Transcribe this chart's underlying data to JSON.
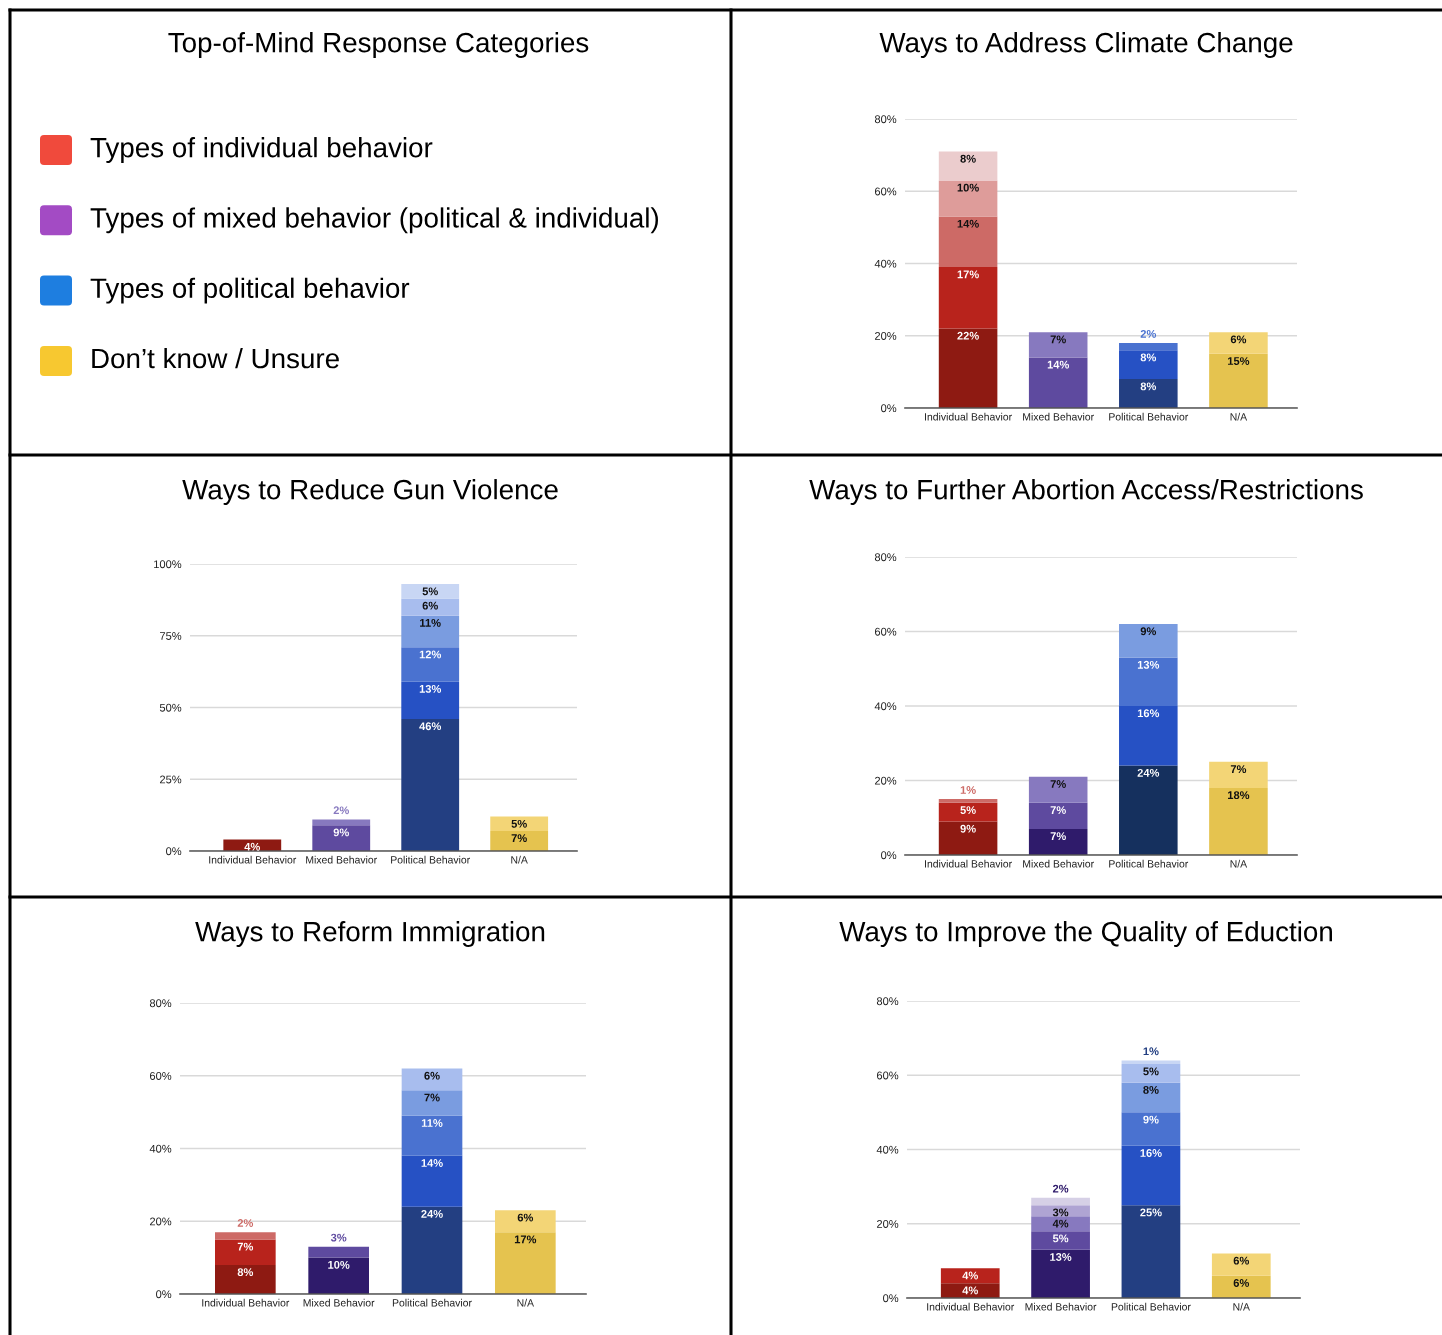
{
  "chart_data": [
    {
      "type": "other",
      "title": "Top-of-Mind Response Categories",
      "annotations": [
        "Types of individual behavior",
        "Types of mixed behavior (political & individual)",
        "Types of political behavior",
        "Don’t know / Unsure"
      ],
      "colors": [
        "#f04a3c",
        "#a34bc4",
        "#1e7ee0",
        "#f7c830"
      ]
    },
    {
      "type": "bar",
      "stacked": true,
      "title": "Ways to Address Climate Change",
      "grid": "y",
      "categories": [
        "Individual Behavior",
        "Mixed Behavior",
        "Political Behavior",
        "N/A"
      ],
      "ylim": [
        0,
        80
      ],
      "yticks": [
        {
          "value": 0,
          "label": "0%"
        },
        {
          "value": 20,
          "label": "20%"
        },
        {
          "value": 40,
          "label": "40%"
        },
        {
          "value": 60,
          "label": "60%"
        },
        {
          "value": 80,
          "label": "80%"
        }
      ],
      "series": [
        {
          "values": [
            22,
            14,
            8,
            15
          ],
          "colors": [
            "#8e1a12",
            "#5e4a9f",
            "#233f82",
            "#e5c34f"
          ],
          "value_labels": [
            "22%",
            "14%",
            "8%",
            "15%"
          ]
        },
        {
          "values": [
            17,
            7,
            8,
            6
          ],
          "colors": [
            "#b8231c",
            "#8779bf",
            "#2651c4",
            "#f3d576"
          ],
          "value_labels": [
            "17%",
            "7%",
            "8%",
            "6%"
          ]
        },
        {
          "values": [
            14,
            null,
            2,
            null
          ],
          "colors": [
            "#cd6a66",
            null,
            "#4a72d0",
            null
          ],
          "value_labels": [
            "14%",
            null,
            "2%",
            null
          ]
        },
        {
          "values": [
            10,
            null,
            null,
            null
          ],
          "colors": [
            "#de9c9a",
            null,
            null,
            null
          ],
          "value_labels": [
            "10%",
            null,
            null,
            null
          ]
        },
        {
          "values": [
            8,
            null,
            null,
            null
          ],
          "colors": [
            "#ebcccd",
            null,
            null,
            null
          ],
          "value_labels": [
            "8%",
            null,
            null,
            null
          ]
        }
      ]
    },
    {
      "type": "bar",
      "stacked": true,
      "title": "Ways to Reduce Gun Violence",
      "grid": "y",
      "categories": [
        "Individual Behavior",
        "Mixed Behavior",
        "Political Behavior",
        "N/A"
      ],
      "ylim": [
        0,
        100
      ],
      "yticks": [
        {
          "value": 0,
          "label": "0%"
        },
        {
          "value": 25,
          "label": "25%"
        },
        {
          "value": 50,
          "label": "50%"
        },
        {
          "value": 75,
          "label": "75%"
        },
        {
          "value": 100,
          "label": "100%"
        }
      ],
      "series": [
        {
          "values": [
            4,
            9,
            46,
            7
          ],
          "colors": [
            "#8e1a12",
            "#5e4a9f",
            "#233f82",
            "#e5c34f"
          ],
          "value_labels": [
            "4%",
            "9%",
            "46%",
            "7%"
          ]
        },
        {
          "values": [
            null,
            2,
            13,
            5
          ],
          "colors": [
            null,
            "#8779bf",
            "#2651c4",
            "#f3d576"
          ],
          "value_labels": [
            null,
            "2%",
            "13%",
            "5%"
          ]
        },
        {
          "values": [
            null,
            null,
            12,
            null
          ],
          "colors": [
            null,
            null,
            "#4a72d0",
            null
          ],
          "value_labels": [
            null,
            null,
            "12%",
            null
          ]
        },
        {
          "values": [
            null,
            null,
            11,
            null
          ],
          "colors": [
            null,
            null,
            "#7a9ce0",
            null
          ],
          "value_labels": [
            null,
            null,
            "11%",
            null
          ]
        },
        {
          "values": [
            null,
            null,
            6,
            null
          ],
          "colors": [
            null,
            null,
            "#a8bdee",
            null
          ],
          "value_labels": [
            null,
            null,
            "6%",
            null
          ]
        },
        {
          "values": [
            null,
            null,
            5,
            null
          ],
          "colors": [
            null,
            null,
            "#c8d6f4",
            null
          ],
          "value_labels": [
            null,
            null,
            "5%",
            null
          ]
        }
      ]
    },
    {
      "type": "bar",
      "stacked": true,
      "title": "Ways to Further Abortion Access/Restrictions",
      "grid": "y",
      "categories": [
        "Individual Behavior",
        "Mixed Behavior",
        "Political Behavior",
        "N/A"
      ],
      "ylim": [
        0,
        80
      ],
      "yticks": [
        {
          "value": 0,
          "label": "0%"
        },
        {
          "value": 20,
          "label": "20%"
        },
        {
          "value": 40,
          "label": "40%"
        },
        {
          "value": 60,
          "label": "60%"
        },
        {
          "value": 80,
          "label": "80%"
        }
      ],
      "series": [
        {
          "values": [
            9,
            7,
            24,
            18
          ],
          "colors": [
            "#8e1a12",
            "#2f1b6b",
            "#15305e",
            "#e5c34f"
          ],
          "value_labels": [
            "9%",
            "7%",
            "24%",
            "18%"
          ]
        },
        {
          "values": [
            5,
            7,
            16,
            7
          ],
          "colors": [
            "#b8231c",
            "#5e4a9f",
            "#2651c4",
            "#f3d576"
          ],
          "value_labels": [
            "5%",
            "7%",
            "16%",
            "7%"
          ]
        },
        {
          "values": [
            1,
            7,
            13,
            null
          ],
          "colors": [
            "#cd6a66",
            "#8779bf",
            "#4a72d0",
            null
          ],
          "value_labels": [
            "1%",
            "7%",
            "13%",
            null
          ]
        },
        {
          "values": [
            null,
            null,
            9,
            null
          ],
          "colors": [
            null,
            null,
            "#7a9ce0",
            null
          ],
          "value_labels": [
            null,
            null,
            "9%",
            null
          ]
        }
      ]
    },
    {
      "type": "bar",
      "stacked": true,
      "title": "Ways to Reform Immigration",
      "grid": "y",
      "categories": [
        "Individual Behavior",
        "Mixed Behavior",
        "Political Behavior",
        "N/A"
      ],
      "ylim": [
        0,
        80
      ],
      "yticks": [
        {
          "value": 0,
          "label": "0%"
        },
        {
          "value": 20,
          "label": "20%"
        },
        {
          "value": 40,
          "label": "40%"
        },
        {
          "value": 60,
          "label": "60%"
        },
        {
          "value": 80,
          "label": "80%"
        }
      ],
      "series": [
        {
          "values": [
            8,
            10,
            24,
            17
          ],
          "colors": [
            "#8e1a12",
            "#2f1b6b",
            "#233f82",
            "#e5c34f"
          ],
          "value_labels": [
            "8%",
            "10%",
            "24%",
            "17%"
          ]
        },
        {
          "values": [
            7,
            3,
            14,
            6
          ],
          "colors": [
            "#b8231c",
            "#5e4a9f",
            "#2651c4",
            "#f3d576"
          ],
          "value_labels": [
            "7%",
            "3%",
            "14%",
            "6%"
          ]
        },
        {
          "values": [
            2,
            null,
            11,
            null
          ],
          "colors": [
            "#cd6a66",
            null,
            "#4a72d0",
            null
          ],
          "value_labels": [
            "2%",
            null,
            "11%",
            null
          ]
        },
        {
          "values": [
            null,
            null,
            7,
            null
          ],
          "colors": [
            null,
            null,
            "#7a9ce0",
            null
          ],
          "value_labels": [
            null,
            null,
            "7%",
            null
          ]
        },
        {
          "values": [
            null,
            null,
            6,
            null
          ],
          "colors": [
            null,
            null,
            "#a8bdee",
            null
          ],
          "value_labels": [
            null,
            null,
            "6%",
            null
          ]
        }
      ]
    },
    {
      "type": "bar",
      "stacked": true,
      "title": "Ways to Improve the Quality of Eduction",
      "grid": "y",
      "categories": [
        "Individual Behavior",
        "Mixed Behavior",
        "Political Behavior",
        "N/A"
      ],
      "ylim": [
        0,
        80
      ],
      "yticks": [
        {
          "value": 0,
          "label": "0%"
        },
        {
          "value": 20,
          "label": "20%"
        },
        {
          "value": 40,
          "label": "40%"
        },
        {
          "value": 60,
          "label": "60%"
        },
        {
          "value": 80,
          "label": "80%"
        }
      ],
      "series": [
        {
          "values": [
            4,
            13,
            25,
            6
          ],
          "colors": [
            "#8e1a12",
            "#2f1b6b",
            "#233f82",
            "#e5c34f"
          ],
          "value_labels": [
            "4%",
            "13%",
            "25%",
            "6%"
          ]
        },
        {
          "values": [
            4,
            5,
            16,
            6
          ],
          "colors": [
            "#b8231c",
            "#5e4a9f",
            "#2651c4",
            "#f3d576"
          ],
          "value_labels": [
            "4%",
            "5%",
            "16%",
            "6%"
          ]
        },
        {
          "values": [
            null,
            4,
            9,
            null
          ],
          "colors": [
            null,
            "#8779bf",
            "#4a72d0",
            null
          ],
          "value_labels": [
            null,
            "4%",
            "9%",
            null
          ]
        },
        {
          "values": [
            null,
            3,
            8,
            null
          ],
          "colors": [
            null,
            "#afa4d3",
            "#7a9ce0",
            null
          ],
          "value_labels": [
            null,
            "3%",
            "8%",
            null
          ]
        },
        {
          "values": [
            null,
            2,
            5,
            null
          ],
          "colors": [
            null,
            "#d6d0e6",
            "#a8bdee",
            null
          ],
          "value_labels": [
            null,
            "2%",
            "5%",
            null
          ]
        },
        {
          "values": [
            null,
            null,
            1,
            null
          ],
          "colors": [
            null,
            null,
            "#c8d6f4",
            null
          ],
          "value_labels": [
            null,
            null,
            "1%",
            null
          ]
        }
      ]
    }
  ]
}
